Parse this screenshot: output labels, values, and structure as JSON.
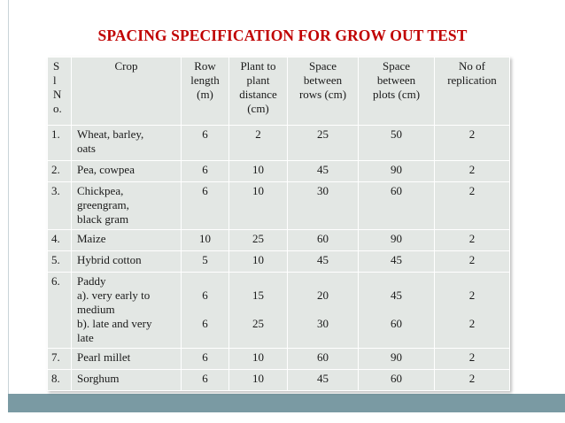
{
  "title": "SPACING SPECIFICATION FOR GROW OUT TEST",
  "headers": {
    "sl": [
      "S",
      "l",
      "N",
      "o."
    ],
    "crop": "Crop",
    "row_length": [
      "Row",
      "length",
      "(m)"
    ],
    "plant_distance": [
      "Plant to",
      "plant",
      "distance",
      "(cm)"
    ],
    "rows_space": [
      "Space",
      "between",
      "rows (cm)"
    ],
    "plots_space": [
      "Space",
      "between",
      "plots (cm)"
    ],
    "replication": [
      "No of",
      "replication"
    ]
  },
  "rows": [
    {
      "sl": "1.",
      "crop": [
        "Wheat, barley,",
        "oats"
      ],
      "row_length": "6",
      "plant_distance": "2",
      "rows_space": "25",
      "plots_space": "50",
      "replication": "2"
    },
    {
      "sl": "2.",
      "crop": [
        "Pea, cowpea"
      ],
      "row_length": "6",
      "plant_distance": "10",
      "rows_space": "45",
      "plots_space": "90",
      "replication": "2"
    },
    {
      "sl": "3.",
      "crop": [
        "Chickpea,",
        "greengram,",
        "black gram"
      ],
      "row_length": "6",
      "plant_distance": "10",
      "rows_space": "30",
      "plots_space": "60",
      "replication": "2"
    },
    {
      "sl": "4.",
      "crop": [
        "Maize"
      ],
      "row_length": "10",
      "plant_distance": "25",
      "rows_space": "60",
      "plots_space": "90",
      "replication": "2"
    },
    {
      "sl": "5.",
      "crop": [
        "Hybrid cotton"
      ],
      "row_length": "5",
      "plant_distance": "10",
      "rows_space": "45",
      "plots_space": "45",
      "replication": "2"
    }
  ],
  "paddy": {
    "sl": "6.",
    "crop_lines": [
      "Paddy",
      "a). very early to",
      "medium",
      "b). late and very",
      "late"
    ],
    "a": {
      "row_length": "6",
      "plant_distance": "15",
      "rows_space": "20",
      "plots_space": "45",
      "replication": "2"
    },
    "b": {
      "row_length": "6",
      "plant_distance": "25",
      "rows_space": "30",
      "plots_space": "60",
      "replication": "2"
    }
  },
  "rows_end": [
    {
      "sl": "7.",
      "crop": [
        "Pearl millet"
      ],
      "row_length": "6",
      "plant_distance": "10",
      "rows_space": "60",
      "plots_space": "90",
      "replication": "2"
    },
    {
      "sl": "8.",
      "crop": [
        "Sorghum"
      ],
      "row_length": "6",
      "plant_distance": "10",
      "rows_space": "45",
      "plots_space": "60",
      "replication": "2"
    }
  ],
  "colors": {
    "title": "#c00000",
    "cell": "#e3e7e4",
    "footer": "#7a9aa3"
  }
}
